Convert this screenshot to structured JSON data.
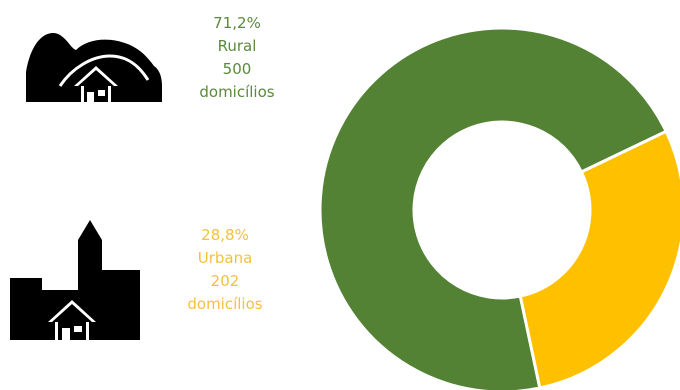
{
  "chart_data": {
    "type": "pie",
    "variant": "donut",
    "series": [
      {
        "name": "Rural",
        "percent_label": "71,2%",
        "value": 500,
        "value_label": "500",
        "unit": "domicílios",
        "color": "#548235",
        "icon": "rural-house-hills-icon"
      },
      {
        "name": "Urbana",
        "percent_label": "28,8%",
        "value": 202,
        "value_label": "202",
        "unit": "domicílios",
        "color": "#ffc000",
        "icon": "urban-house-buildings-icon"
      }
    ],
    "legend": "left",
    "title": "",
    "xlabel": "",
    "ylabel": ""
  }
}
